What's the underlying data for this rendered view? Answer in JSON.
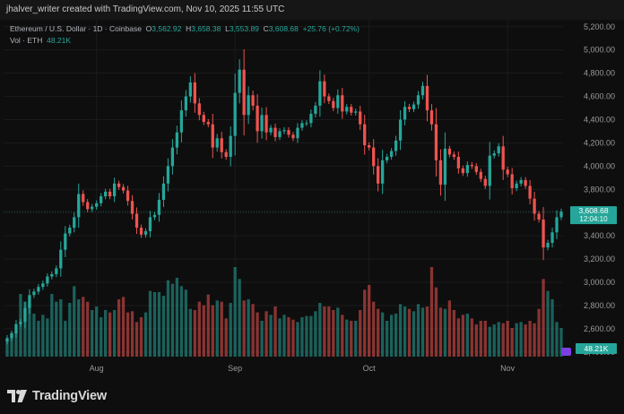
{
  "attribution": "jhalver_writer created with TradingView.com, Nov 10, 2025 11:55 UTC",
  "legend": {
    "symbol": "Ethereum / U.S. Dollar · 1D · Coinbase",
    "o_label": "O",
    "o_value": "3,562.92",
    "h_label": "H",
    "h_value": "3,658.38",
    "l_label": "L",
    "l_value": "3,553.89",
    "c_label": "C",
    "c_value": "3,608.68",
    "change": "+25.76 (+0.72%)",
    "vol_label": "Vol · ETH",
    "vol_value": "48.21K"
  },
  "price_tag": {
    "value": "3,608.68",
    "countdown": "12:04:10"
  },
  "volume_tag": "48.21K",
  "brand": "TradingView",
  "colors": {
    "up": "#26a69a",
    "down": "#ef5350",
    "background": "#0e0e0e",
    "grid": "#1b1b1b",
    "axis_text": "#9a9a9a"
  },
  "chart_data": {
    "type": "candlestick",
    "symbol": "ETHUSD",
    "timeframe": "1D",
    "x_labels": [
      {
        "label": "Aug",
        "index": 20
      },
      {
        "label": "Sep",
        "index": 51
      },
      {
        "label": "Oct",
        "index": 81
      },
      {
        "label": "Nov",
        "index": 112
      }
    ],
    "y_ticks": [
      2400,
      2600,
      2800,
      3000,
      3200,
      3400,
      3600,
      3800,
      4000,
      4200,
      4400,
      4600,
      4800,
      5000,
      5200
    ],
    "y_tick_labels": [
      "2,400.00",
      "2,600.00",
      "2,800.00",
      "3,000.00",
      "3,200.00",
      "3,400.00",
      "3,600.00",
      "3,800.00",
      "4,000.00",
      "4,200.00",
      "4,400.00",
      "4,600.00",
      "4,800.00",
      "5,000.00",
      "5,200.00"
    ],
    "ylim": [
      2360,
      5260
    ],
    "volume_max": 150,
    "close": [
      2520,
      2560,
      2640,
      2660,
      2780,
      2890,
      2920,
      2960,
      2990,
      3050,
      3070,
      3120,
      3280,
      3420,
      3470,
      3560,
      3760,
      3690,
      3630,
      3650,
      3680,
      3740,
      3780,
      3740,
      3850,
      3820,
      3790,
      3700,
      3590,
      3470,
      3410,
      3440,
      3560,
      3580,
      3710,
      3850,
      4000,
      4160,
      4290,
      4480,
      4600,
      4720,
      4540,
      4440,
      4380,
      4360,
      4160,
      4240,
      4120,
      4080,
      4260,
      4630,
      4830,
      4440,
      4610,
      4520,
      4300,
      4440,
      4290,
      4330,
      4250,
      4300,
      4310,
      4270,
      4240,
      4330,
      4370,
      4370,
      4450,
      4520,
      4730,
      4600,
      4560,
      4500,
      4610,
      4470,
      4510,
      4460,
      4470,
      4360,
      4180,
      4160,
      4000,
      3850,
      4050,
      4080,
      4130,
      4220,
      4400,
      4510,
      4490,
      4530,
      4610,
      4690,
      4480,
      4360,
      4050,
      3840,
      4150,
      4100,
      4080,
      3980,
      3940,
      4010,
      4000,
      3950,
      3890,
      3830,
      4090,
      4110,
      4170,
      3970,
      3930,
      3810,
      3850,
      3880,
      3830,
      3720,
      3590,
      3540,
      3300,
      3340,
      3430,
      3560,
      3608.68
    ],
    "volume": [
      28,
      40,
      42,
      105,
      92,
      88,
      72,
      60,
      70,
      64,
      105,
      92,
      96,
      60,
      90,
      118,
      96,
      100,
      92,
      78,
      84,
      66,
      78,
      74,
      78,
      96,
      100,
      74,
      76,
      58,
      66,
      74,
      110,
      108,
      108,
      102,
      128,
      122,
      132,
      118,
      112,
      80,
      78,
      92,
      86,
      104,
      86,
      94,
      92,
      64,
      90,
      150,
      130,
      94,
      96,
      88,
      74,
      60,
      76,
      70,
      84,
      64,
      70,
      66,
      62,
      58,
      66,
      68,
      68,
      76,
      90,
      84,
      84,
      78,
      82,
      70,
      62,
      60,
      60,
      78,
      112,
      120,
      92,
      80,
      74,
      60,
      70,
      72,
      88,
      84,
      80,
      76,
      88,
      82,
      84,
      150,
      116,
      82,
      80,
      94,
      78,
      64,
      70,
      72,
      64,
      54,
      60,
      60,
      50,
      54,
      58,
      56,
      60,
      48,
      56,
      58,
      54,
      60,
      56,
      80,
      130,
      110,
      96,
      58,
      48
    ],
    "up_flags": [
      1,
      1,
      1,
      1,
      1,
      1,
      1,
      1,
      1,
      1,
      1,
      1,
      1,
      1,
      1,
      1,
      1,
      0,
      0,
      1,
      1,
      1,
      1,
      0,
      1,
      0,
      0,
      0,
      0,
      0,
      0,
      1,
      1,
      1,
      1,
      1,
      1,
      1,
      1,
      1,
      1,
      1,
      0,
      0,
      0,
      0,
      0,
      1,
      0,
      0,
      1,
      1,
      1,
      0,
      1,
      0,
      0,
      1,
      0,
      1,
      0,
      1,
      1,
      0,
      0,
      1,
      1,
      1,
      1,
      1,
      1,
      0,
      0,
      0,
      1,
      0,
      1,
      0,
      1,
      0,
      0,
      0,
      0,
      0,
      1,
      1,
      1,
      1,
      1,
      1,
      0,
      1,
      1,
      1,
      0,
      0,
      0,
      0,
      1,
      0,
      0,
      0,
      0,
      1,
      0,
      0,
      0,
      0,
      1,
      1,
      1,
      0,
      0,
      0,
      1,
      1,
      0,
      0,
      0,
      0,
      0,
      1,
      1,
      1,
      1
    ]
  }
}
